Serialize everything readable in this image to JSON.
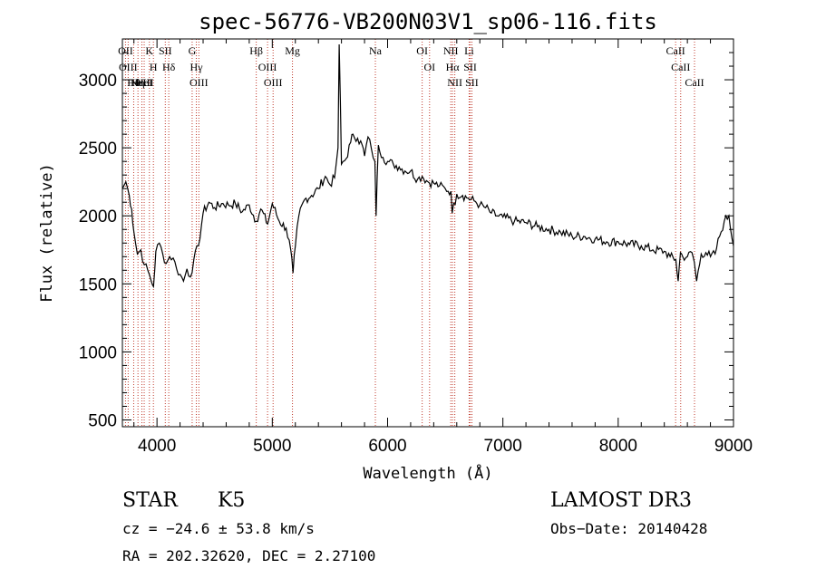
{
  "chart_data": {
    "type": "line",
    "title": "spec-56776-VB200N03V1_sp06-116.fits",
    "xlabel": "Wavelength (Å)",
    "ylabel": "Flux (relative)",
    "xlim": [
      3700,
      9000
    ],
    "ylim": [
      450,
      3300
    ],
    "xticks": [
      4000,
      5000,
      6000,
      7000,
      8000,
      9000
    ],
    "yticks": [
      500,
      1000,
      1500,
      2000,
      2500,
      3000
    ],
    "series": [
      {
        "name": "flux",
        "x": [
          3700,
          3730,
          3760,
          3780,
          3800,
          3830,
          3860,
          3890,
          3920,
          3950,
          3970,
          3990,
          4020,
          4050,
          4080,
          4110,
          4140,
          4170,
          4200,
          4230,
          4260,
          4290,
          4320,
          4360,
          4400,
          4450,
          4500,
          4560,
          4620,
          4680,
          4740,
          4800,
          4860,
          4900,
          4960,
          5000,
          5060,
          5120,
          5160,
          5180,
          5200,
          5230,
          5280,
          5340,
          5400,
          5460,
          5500,
          5540,
          5570,
          5580,
          5600,
          5640,
          5680,
          5700,
          5740,
          5780,
          5800,
          5830,
          5860,
          5890,
          5900,
          5920,
          5960,
          6000,
          6050,
          6100,
          6150,
          6200,
          6260,
          6300,
          6350,
          6400,
          6450,
          6500,
          6550,
          6560,
          6600,
          6650,
          6700,
          6750,
          6800,
          6850,
          6900,
          6950,
          7000,
          7100,
          7200,
          7300,
          7400,
          7500,
          7600,
          7700,
          7800,
          7900,
          8000,
          8100,
          8200,
          8300,
          8400,
          8450,
          8500,
          8520,
          8540,
          8560,
          8600,
          8640,
          8660,
          8680,
          8720,
          8760,
          8800,
          8840,
          8880,
          8920,
          8960,
          9000
        ],
        "y": [
          2200,
          2250,
          2150,
          2050,
          1880,
          1720,
          1750,
          1640,
          1600,
          1520,
          1480,
          1740,
          1800,
          1720,
          1650,
          1700,
          1690,
          1610,
          1570,
          1520,
          1610,
          1550,
          1680,
          1780,
          2020,
          2100,
          2060,
          2090,
          2080,
          2090,
          2030,
          2080,
          1960,
          2050,
          1940,
          2090,
          1960,
          1910,
          1750,
          1580,
          1780,
          2000,
          2120,
          2150,
          2200,
          2290,
          2230,
          2280,
          2500,
          3260,
          2380,
          2420,
          2540,
          2600,
          2570,
          2520,
          2440,
          2580,
          2490,
          2400,
          2000,
          2520,
          2430,
          2400,
          2380,
          2360,
          2330,
          2330,
          2270,
          2290,
          2250,
          2240,
          2220,
          2200,
          2180,
          2020,
          2160,
          2150,
          2130,
          2110,
          2080,
          2060,
          2020,
          2000,
          1990,
          1960,
          1950,
          1920,
          1900,
          1880,
          1850,
          1850,
          1830,
          1810,
          1810,
          1790,
          1780,
          1750,
          1740,
          1700,
          1680,
          1520,
          1730,
          1700,
          1700,
          1730,
          1660,
          1520,
          1720,
          1730,
          1700,
          1720,
          1850,
          1960,
          2000,
          1780
        ]
      }
    ],
    "emission_lines": [
      {
        "wave": 3727,
        "label": "OII"
      },
      {
        "wave": 3750,
        "label": "OIII"
      },
      {
        "wave": 3798,
        "label": "Hθ"
      },
      {
        "wave": 3835,
        "label": "Hη"
      },
      {
        "wave": 3869,
        "label": "NeIII"
      },
      {
        "wave": 3889,
        "label": "HeI"
      },
      {
        "wave": 3934,
        "label": "K"
      },
      {
        "wave": 3969,
        "label": "H"
      },
      {
        "wave": 4072,
        "label": "SII"
      },
      {
        "wave": 4102,
        "label": "Hδ"
      },
      {
        "wave": 4305,
        "label": "G"
      },
      {
        "wave": 4341,
        "label": "Hγ"
      },
      {
        "wave": 4363,
        "label": "OIII"
      },
      {
        "wave": 4861,
        "label": "Hβ"
      },
      {
        "wave": 4959,
        "label": "OIII"
      },
      {
        "wave": 5007,
        "label": "OIII"
      },
      {
        "wave": 5175,
        "label": "Mg"
      },
      {
        "wave": 5894,
        "label": "Na"
      },
      {
        "wave": 6300,
        "label": "OI"
      },
      {
        "wave": 6364,
        "label": "OI"
      },
      {
        "wave": 6548,
        "label": "NII"
      },
      {
        "wave": 6563,
        "label": "Hα"
      },
      {
        "wave": 6583,
        "label": "NII"
      },
      {
        "wave": 6707,
        "label": "Li"
      },
      {
        "wave": 6716,
        "label": "SII"
      },
      {
        "wave": 6731,
        "label": "SII"
      },
      {
        "wave": 8498,
        "label": "CaII"
      },
      {
        "wave": 8542,
        "label": "CaII"
      },
      {
        "wave": 8662,
        "label": "CaII"
      }
    ]
  },
  "info": {
    "class": "STAR",
    "subclass": "K5",
    "survey": "LAMOST DR3",
    "cz": "cz = −24.6 ± 53.8 km/s",
    "obs_date": "Obs−Date: 20140428",
    "coords": "RA = 202.32620, DEC =    2.27100"
  },
  "colors": {
    "axis": "#000000",
    "line": "#000000",
    "marker": "#c0392b"
  }
}
